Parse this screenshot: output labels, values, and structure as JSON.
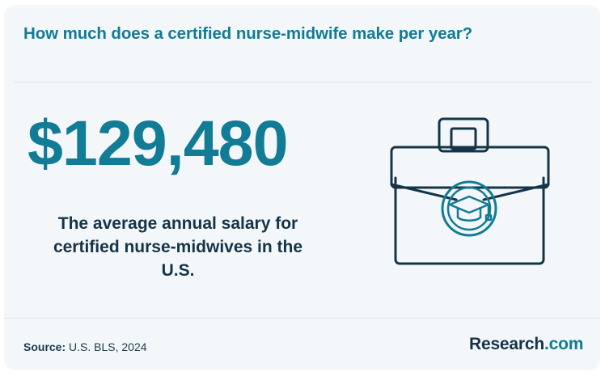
{
  "header": {
    "title": "How much does a certified nurse-midwife make per year?"
  },
  "stat": {
    "value": "$129,480",
    "description": "The average annual salary for certified nurse-midwives in the U.S."
  },
  "illustration": {
    "icon": "briefcase-with-graduation-cap-icon"
  },
  "footer": {
    "source_label": "Source:",
    "source_value": " U.S. BLS, 2024",
    "brand_name": "Research",
    "brand_tld": ".com"
  },
  "colors": {
    "accent": "#127b95",
    "dark": "#163447",
    "card_background": "#f3f7f9"
  }
}
